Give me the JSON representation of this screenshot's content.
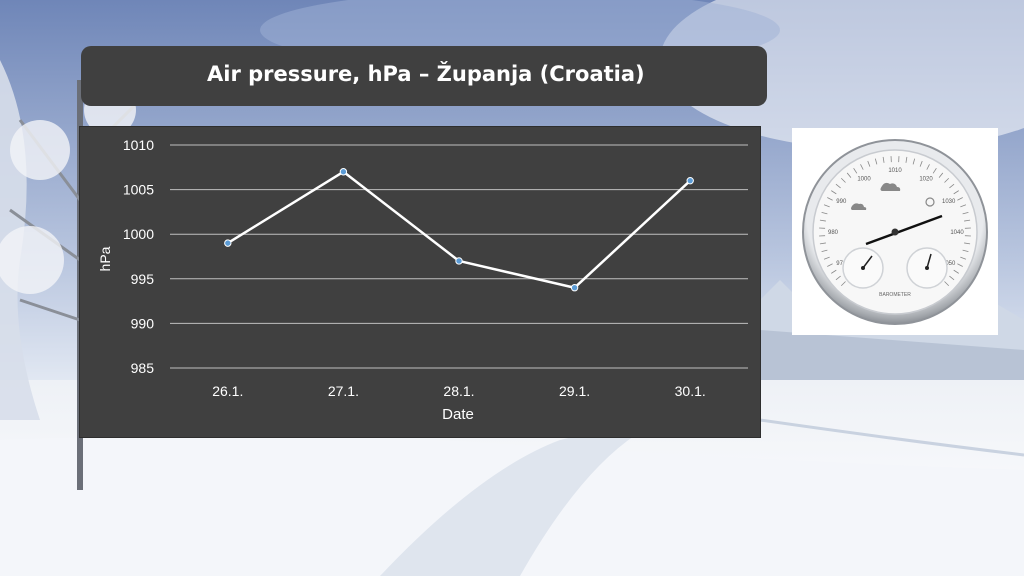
{
  "slide": {
    "title": "Air pressure, hPa – Županja (Croatia)"
  },
  "barometer": {
    "dial_numbers": [
      "970",
      "980",
      "990",
      "1000",
      "1010",
      "1020",
      "1030",
      "1040",
      "1050"
    ],
    "caption": "BAROMETER"
  },
  "colors": {
    "panel": "#404040",
    "gridline": "#bfbfbf",
    "line": "#ffffff",
    "marker": "#5b9bd5",
    "text": "#ffffff"
  },
  "chart_data": {
    "type": "line",
    "title": "",
    "xlabel": "Date",
    "ylabel": "hPa",
    "categories": [
      "26.1.",
      "27.1.",
      "28.1.",
      "29.1.",
      "30.1."
    ],
    "series": [
      {
        "values": [
          999,
          1007,
          997,
          994,
          1006
        ]
      }
    ],
    "ylim": [
      985,
      1010
    ],
    "yticks": [
      985,
      990,
      995,
      1000,
      1005,
      1010
    ],
    "grid": true,
    "legend": "none"
  }
}
